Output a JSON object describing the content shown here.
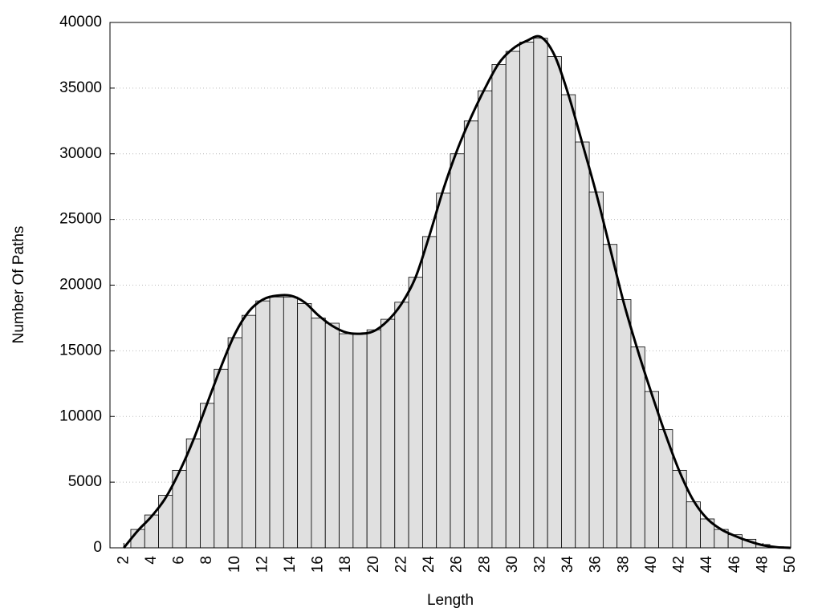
{
  "chart_data": {
    "type": "histogram",
    "xlabel": "Length",
    "ylabel": "Number Of Paths",
    "bins": [
      2.5,
      3.5,
      4.5,
      5.5,
      6.5,
      7.5,
      8.5,
      9.5,
      10.5,
      11.5,
      12.5,
      13.5,
      14.5,
      15.5,
      16.5,
      17.5,
      18.5,
      19.5,
      20.5,
      21.5,
      22.5,
      23.5,
      24.5,
      25.5,
      26.5,
      27.5,
      28.5,
      29.5,
      30.5,
      31.5,
      32.5,
      33.5,
      34.5,
      35.5,
      36.5,
      37.5,
      38.5,
      39.5,
      40.5,
      41.5,
      42.5,
      43.5,
      44.5,
      45.5,
      46.5,
      47.5,
      48.5,
      49.5
    ],
    "values": [
      1400,
      2500,
      4000,
      5900,
      8300,
      11000,
      13600,
      16000,
      17700,
      18800,
      19100,
      19100,
      18600,
      17500,
      17100,
      16300,
      16300,
      16600,
      17400,
      18700,
      20600,
      23700,
      27000,
      30000,
      32500,
      34800,
      36800,
      37800,
      38500,
      38800,
      37400,
      34500,
      30900,
      27100,
      23100,
      18900,
      15300,
      11900,
      9000,
      5900,
      3500,
      2200,
      1400,
      1000,
      650,
      250,
      80
    ],
    "color": "#e0e0e0",
    "curve": {
      "color": "#000000",
      "x": [
        2,
        3,
        4,
        5,
        6,
        7,
        8,
        9,
        10,
        11,
        12,
        13,
        14,
        15,
        16,
        17,
        18,
        19,
        20,
        21,
        22,
        23,
        24,
        25,
        26,
        27,
        28,
        29,
        30,
        31,
        32,
        33,
        34,
        35,
        36,
        37,
        38,
        39,
        40,
        41,
        42,
        43,
        44,
        45,
        46,
        47,
        48,
        49,
        50
      ],
      "values": [
        0,
        1300,
        2400,
        3800,
        5800,
        8200,
        11000,
        13800,
        16300,
        18000,
        18900,
        19200,
        19200,
        18700,
        17700,
        16900,
        16400,
        16300,
        16500,
        17300,
        18600,
        20600,
        23800,
        27300,
        30300,
        32800,
        35000,
        36900,
        38000,
        38600,
        38900,
        37500,
        34500,
        30800,
        27000,
        22800,
        18600,
        15000,
        11700,
        8600,
        5800,
        3600,
        2200,
        1400,
        900,
        500,
        200,
        50,
        0
      ]
    },
    "xlim": [
      1,
      50
    ],
    "ylim": [
      0,
      40000
    ],
    "xticks": [
      2,
      4,
      6,
      8,
      10,
      12,
      14,
      16,
      18,
      20,
      22,
      24,
      26,
      28,
      30,
      32,
      34,
      36,
      38,
      40,
      42,
      44,
      46,
      48,
      50
    ],
    "yticks": [
      0,
      5000,
      10000,
      15000,
      20000,
      25000,
      30000,
      35000,
      40000
    ],
    "grid": true
  }
}
